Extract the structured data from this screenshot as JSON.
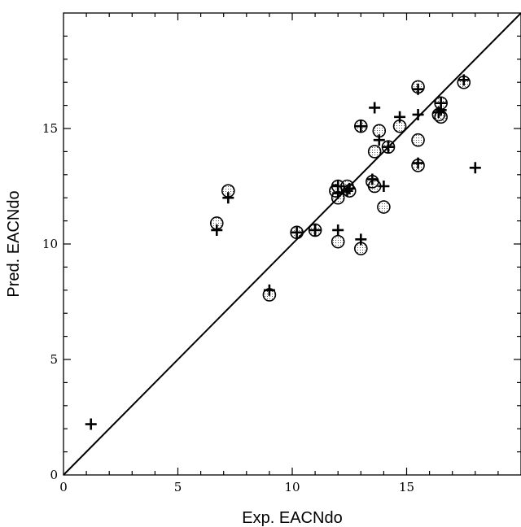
{
  "chart_data": {
    "type": "scatter",
    "title": "",
    "xlabel": "Exp. EACNdo",
    "ylabel": "Pred. EACNdo",
    "xlim": [
      0,
      20
    ],
    "ylim": [
      0,
      20
    ],
    "xticks": [
      0,
      5,
      10,
      15
    ],
    "yticks": [
      0,
      5,
      10,
      15
    ],
    "xtick_labels": [
      "0",
      "5",
      "10",
      "15"
    ],
    "ytick_labels": [
      "0",
      "5",
      "10",
      "15"
    ],
    "minor_tick_step": 1,
    "grid": false,
    "legend": "none",
    "diagonal_line": {
      "from": [
        0,
        0
      ],
      "to": [
        20,
        20
      ]
    },
    "series": [
      {
        "marker": "circle",
        "points": [
          [
            6.7,
            10.9
          ],
          [
            7.2,
            12.3
          ],
          [
            9.0,
            7.8
          ],
          [
            10.2,
            10.5
          ],
          [
            11.0,
            10.6
          ],
          [
            12.0,
            12.5
          ],
          [
            12.0,
            12.0
          ],
          [
            11.9,
            12.3
          ],
          [
            12.0,
            10.1
          ],
          [
            12.4,
            12.5
          ],
          [
            12.5,
            12.3
          ],
          [
            13.0,
            15.1
          ],
          [
            13.0,
            9.8
          ],
          [
            13.5,
            12.7
          ],
          [
            13.6,
            12.5
          ],
          [
            13.6,
            14.0
          ],
          [
            13.8,
            14.9
          ],
          [
            14.0,
            11.6
          ],
          [
            14.2,
            14.2
          ],
          [
            14.7,
            15.1
          ],
          [
            15.5,
            16.8
          ],
          [
            15.5,
            14.5
          ],
          [
            15.5,
            13.4
          ],
          [
            16.4,
            15.6
          ],
          [
            16.5,
            16.1
          ],
          [
            16.5,
            15.5
          ],
          [
            17.5,
            17.0
          ]
        ]
      },
      {
        "marker": "plus",
        "points": [
          [
            1.2,
            2.2
          ],
          [
            6.7,
            10.6
          ],
          [
            7.2,
            12.0
          ],
          [
            9.0,
            8.0
          ],
          [
            10.2,
            10.5
          ],
          [
            11.0,
            10.6
          ],
          [
            12.0,
            12.5
          ],
          [
            12.0,
            12.2
          ],
          [
            12.0,
            10.6
          ],
          [
            12.4,
            12.3
          ],
          [
            12.5,
            12.4
          ],
          [
            13.0,
            15.1
          ],
          [
            13.0,
            10.2
          ],
          [
            13.5,
            12.8
          ],
          [
            13.6,
            15.9
          ],
          [
            13.8,
            14.5
          ],
          [
            14.0,
            12.5
          ],
          [
            14.2,
            14.2
          ],
          [
            14.7,
            15.5
          ],
          [
            15.5,
            16.7
          ],
          [
            15.5,
            15.6
          ],
          [
            15.5,
            13.5
          ],
          [
            16.4,
            15.7
          ],
          [
            16.5,
            16.1
          ],
          [
            16.5,
            15.8
          ],
          [
            17.5,
            17.1
          ],
          [
            18.0,
            13.3
          ]
        ]
      }
    ]
  }
}
